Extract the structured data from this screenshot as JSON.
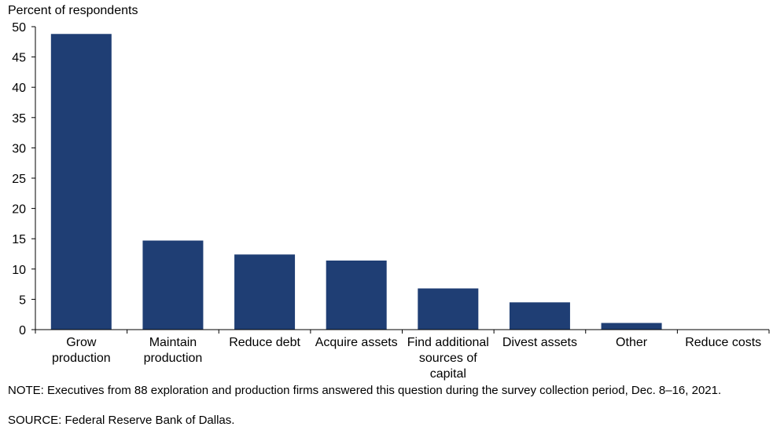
{
  "chart_data": {
    "type": "bar",
    "title": "",
    "ylabel": "Percent of respondents",
    "xlabel": "",
    "ylim": [
      0,
      50
    ],
    "yticks": [
      0,
      5,
      10,
      15,
      20,
      25,
      30,
      35,
      40,
      45,
      50
    ],
    "categories": [
      "Grow production",
      "Maintain production",
      "Reduce debt",
      "Acquire assets",
      "Find additional sources of capital",
      "Divest assets",
      "Other",
      "Reduce costs"
    ],
    "category_lines": [
      [
        "Grow",
        "production"
      ],
      [
        "Maintain",
        "production"
      ],
      [
        "Reduce debt"
      ],
      [
        "Acquire assets"
      ],
      [
        "Find additional",
        "sources of",
        "capital"
      ],
      [
        "Divest assets"
      ],
      [
        "Other"
      ],
      [
        "Reduce costs"
      ]
    ],
    "values": [
      48.8,
      14.7,
      12.4,
      11.4,
      6.8,
      4.5,
      1.1,
      0
    ],
    "bar_color": "#1f3e74",
    "grid": false,
    "legend": "none"
  },
  "notes": {
    "note": "NOTE: Executives from 88 exploration and production firms answered this question during the survey collection period, Dec. 8–16, 2021.",
    "source": "SOURCE: Federal Reserve Bank of Dallas."
  }
}
